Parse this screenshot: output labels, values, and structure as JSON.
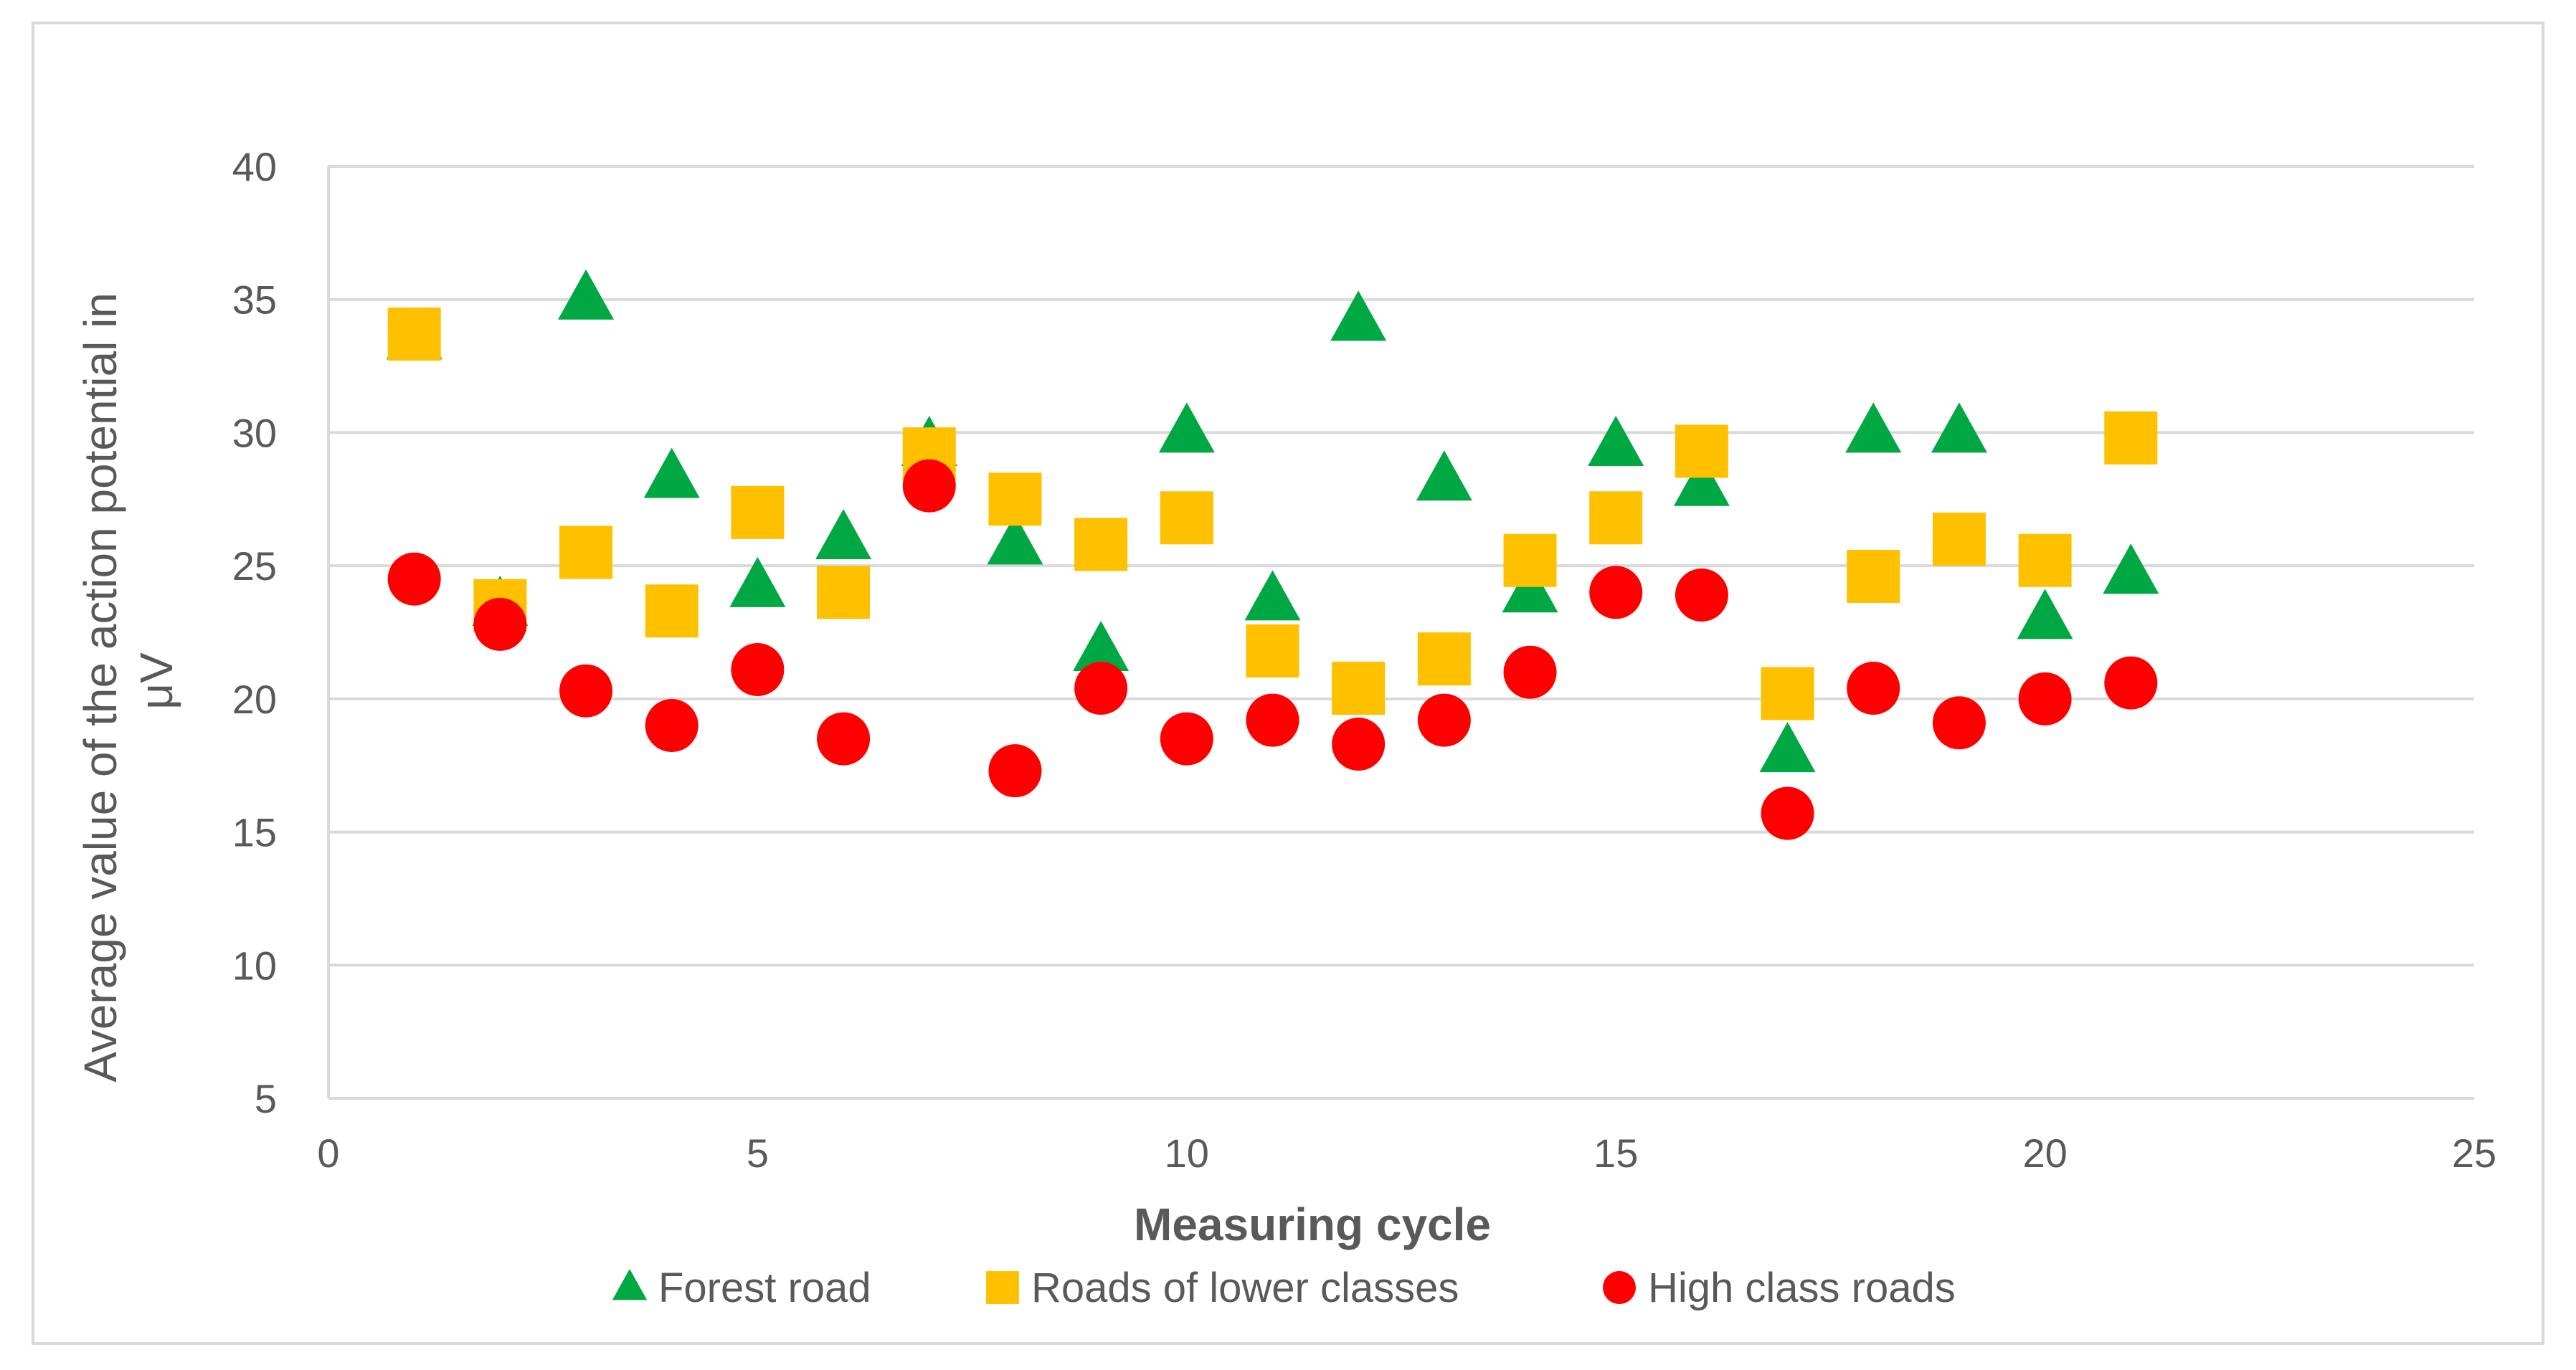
{
  "chart_data": {
    "type": "scatter",
    "title": "",
    "xlabel": "Measuring cycle",
    "ylabel": "Average value of the action potential in μV",
    "xlim": [
      0,
      25
    ],
    "ylim": [
      5,
      40
    ],
    "xticks": [
      0,
      5,
      10,
      15,
      20,
      25
    ],
    "yticks": [
      5,
      10,
      15,
      20,
      25,
      30,
      35,
      40
    ],
    "grid": true,
    "legend_position": "bottom",
    "colors": {
      "forest": "#00a844",
      "lower": "#ffc000",
      "high": "#ff0000",
      "grid": "#d9d9d9",
      "axis_text": "#595959",
      "frame": "#d9d9d9"
    },
    "series": [
      {
        "name": "Forest road",
        "marker": "triangle",
        "x": [
          1,
          2,
          3,
          4,
          5,
          6,
          7,
          8,
          9,
          10,
          11,
          12,
          13,
          14,
          15,
          16,
          17,
          18,
          19,
          20,
          21
        ],
        "y": [
          33.5,
          23.5,
          35,
          28.3,
          24.2,
          26,
          29.5,
          25.8,
          21.8,
          30,
          23.7,
          34.2,
          28.2,
          24,
          29.5,
          28,
          18,
          30,
          30,
          23,
          24.7
        ]
      },
      {
        "name": "Roads of lower classes",
        "marker": "square",
        "x": [
          1,
          2,
          3,
          4,
          5,
          6,
          7,
          8,
          9,
          10,
          11,
          12,
          13,
          14,
          15,
          16,
          17,
          18,
          19,
          20,
          21
        ],
        "y": [
          33.7,
          23.5,
          25.5,
          23.3,
          27,
          24,
          29.2,
          27.5,
          25.8,
          26.8,
          21.8,
          20.4,
          21.5,
          25.2,
          26.8,
          29.3,
          20.2,
          24.6,
          26,
          25.2,
          29.8
        ]
      },
      {
        "name": "High class roads",
        "marker": "circle",
        "x": [
          1,
          2,
          3,
          4,
          5,
          6,
          7,
          8,
          9,
          10,
          11,
          12,
          13,
          14,
          15,
          16,
          17,
          18,
          19,
          20,
          21
        ],
        "y": [
          24.5,
          22.8,
          20.3,
          19,
          21.1,
          18.5,
          28,
          17.3,
          20.4,
          18.5,
          19.2,
          18.3,
          19.2,
          21,
          24,
          23.9,
          15.7,
          20.4,
          19.1,
          20,
          20.6
        ]
      }
    ]
  }
}
